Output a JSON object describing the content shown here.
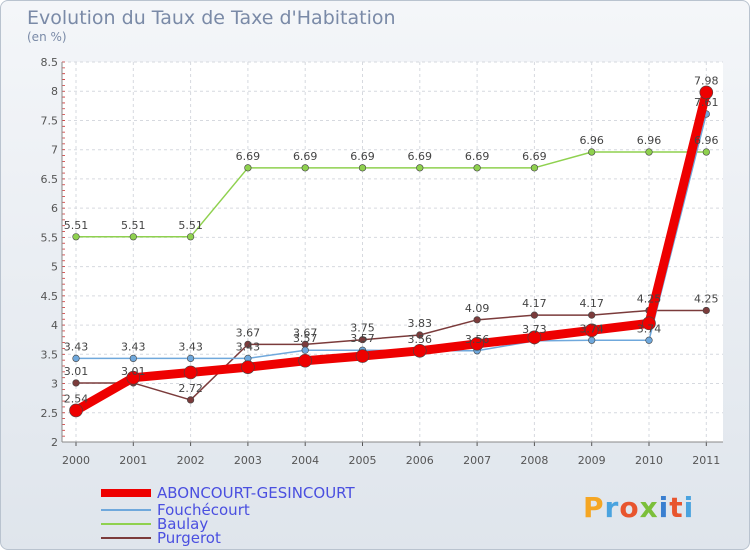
{
  "header": {
    "title": "Evolution du Taux de Taxe d'Habitation",
    "subtitle": "(en %)"
  },
  "logo": {
    "text": "Proxiti",
    "colors": [
      "#f5a623",
      "#4aa3df",
      "#e8552e",
      "#7bbf3a",
      "#3a7fd0",
      "#e8552e",
      "#4aa3df"
    ]
  },
  "chart_data": {
    "type": "line",
    "title": "Evolution du Taux de Taxe d'Habitation",
    "subtitle": "(en %)",
    "x": [
      "2000",
      "2001",
      "2002",
      "2003",
      "2004",
      "2005",
      "2006",
      "2007",
      "2008",
      "2009",
      "2010",
      "2011"
    ],
    "ylim": [
      2,
      8.5
    ],
    "yticks": [
      2,
      2.5,
      3,
      3.5,
      4,
      4.5,
      5,
      5.5,
      6,
      6.5,
      7,
      7.5,
      8,
      8.5
    ],
    "grid": true,
    "legend_position": "bottom-left",
    "series": [
      {
        "name": "ABONCOURT-GESINCOURT",
        "color": "#ee0000",
        "width": 9,
        "values": [
          2.54,
          3.1,
          3.19,
          3.28,
          3.39,
          3.47,
          3.56,
          3.68,
          3.79,
          3.91,
          4.03,
          7.98
        ],
        "labels": [
          "2.54",
          "",
          "",
          "",
          "",
          "",
          "",
          "",
          "",
          "",
          "",
          "7.98"
        ]
      },
      {
        "name": "Fouchécourt",
        "color": "#6fa8dc",
        "width": 1.5,
        "values": [
          3.43,
          3.43,
          3.43,
          3.43,
          3.57,
          3.57,
          3.56,
          3.56,
          3.73,
          3.74,
          3.74,
          7.61
        ],
        "labels": [
          "3.43",
          "3.43",
          "3.43",
          "3.43",
          "3.57",
          "3.57",
          "3.56",
          "3.56",
          "3.73",
          "3.74",
          "3.74",
          "7.61"
        ]
      },
      {
        "name": "Baulay",
        "color": "#8fd14f",
        "width": 1.5,
        "values": [
          5.51,
          5.51,
          5.51,
          6.69,
          6.69,
          6.69,
          6.69,
          6.69,
          6.69,
          6.96,
          6.96,
          6.96
        ],
        "labels": [
          "5.51",
          "5.51",
          "5.51",
          "6.69",
          "6.69",
          "6.69",
          "6.69",
          "6.69",
          "6.69",
          "6.96",
          "6.96",
          "6.96"
        ]
      },
      {
        "name": "Purgerot",
        "color": "#7b3b3b",
        "width": 1.5,
        "values": [
          3.01,
          3.01,
          2.72,
          3.67,
          3.67,
          3.75,
          3.83,
          4.09,
          4.17,
          4.17,
          4.25,
          4.25
        ],
        "labels": [
          "3.01",
          "3.01",
          "2.72",
          "3.67",
          "3.67",
          "3.75",
          "3.83",
          "4.09",
          "4.17",
          "4.17",
          "4.25",
          "4.25"
        ]
      }
    ]
  }
}
